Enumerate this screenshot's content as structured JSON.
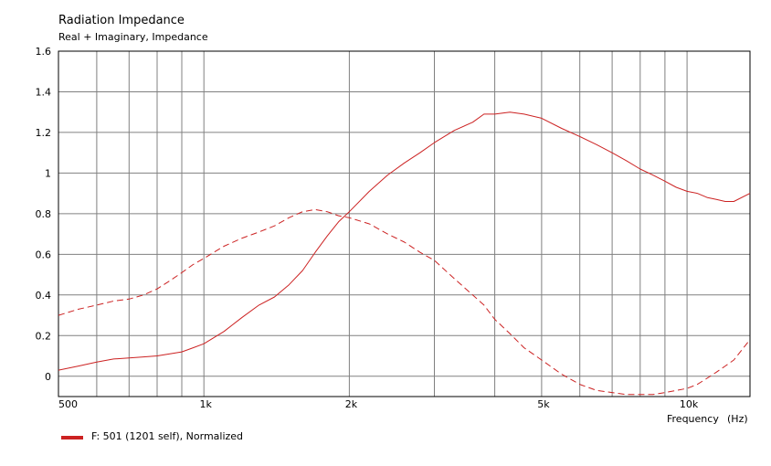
{
  "chart_data": {
    "type": "line",
    "title": "Radiation Impedance",
    "subtitle": "Real + Imaginary, Impedance",
    "xlabel": "Frequency",
    "xunit": "(Hz)",
    "ylabel": "",
    "xscale": "log",
    "xlim": [
      500,
      13500
    ],
    "ylim": [
      -0.1,
      1.6
    ],
    "grid": true,
    "colors": {
      "series": "#cc2222",
      "grid": "#808080",
      "axis": "#000000"
    },
    "x_tick_labels": [
      {
        "value": 500,
        "label": "500"
      },
      {
        "value": 1000,
        "label": "1k"
      },
      {
        "value": 2000,
        "label": "2k"
      },
      {
        "value": 5000,
        "label": "5k"
      },
      {
        "value": 10000,
        "label": "10k"
      }
    ],
    "x_gridlines": [
      600,
      700,
      800,
      900,
      1000,
      2000,
      3000,
      4000,
      5000,
      6000,
      7000,
      8000,
      9000,
      10000
    ],
    "y_tick_labels": [
      {
        "value": 1.6,
        "label": "1.6"
      },
      {
        "value": 1.4,
        "label": "1.4"
      },
      {
        "value": 1.2,
        "label": "1.2"
      },
      {
        "value": 1.0,
        "label": "1"
      },
      {
        "value": 0.8,
        "label": "0.8"
      },
      {
        "value": 0.6,
        "label": "0.6"
      },
      {
        "value": 0.4,
        "label": "0.4"
      },
      {
        "value": 0.2,
        "label": "0.2"
      },
      {
        "value": 0.0,
        "label": "0"
      }
    ],
    "legend": {
      "placement": "bottom-left",
      "label": "F: 501 (1201 self), Normalized"
    },
    "series": [
      {
        "id": "real",
        "style": "solid",
        "x": [
          500,
          550,
          600,
          650,
          700,
          750,
          800,
          850,
          900,
          950,
          1000,
          1100,
          1200,
          1300,
          1400,
          1500,
          1600,
          1700,
          1800,
          1900,
          2000,
          2200,
          2400,
          2600,
          2800,
          3000,
          3300,
          3600,
          3800,
          4000,
          4300,
          4600,
          5000,
          5500,
          6000,
          6500,
          7000,
          7500,
          8000,
          8500,
          9000,
          9500,
          10000,
          10500,
          11000,
          11500,
          12000,
          12500,
          13500
        ],
        "y": [
          0.03,
          0.05,
          0.07,
          0.085,
          0.09,
          0.095,
          0.1,
          0.11,
          0.12,
          0.14,
          0.16,
          0.22,
          0.29,
          0.35,
          0.39,
          0.45,
          0.52,
          0.61,
          0.69,
          0.76,
          0.81,
          0.91,
          0.99,
          1.05,
          1.1,
          1.15,
          1.21,
          1.25,
          1.29,
          1.29,
          1.3,
          1.29,
          1.27,
          1.22,
          1.18,
          1.14,
          1.1,
          1.06,
          1.02,
          0.99,
          0.96,
          0.93,
          0.91,
          0.9,
          0.88,
          0.87,
          0.86,
          0.86,
          0.9
        ]
      },
      {
        "id": "imaginary",
        "style": "dashed",
        "x": [
          500,
          550,
          600,
          650,
          700,
          750,
          800,
          850,
          900,
          950,
          1000,
          1100,
          1200,
          1300,
          1400,
          1500,
          1600,
          1700,
          1800,
          1900,
          2000,
          2200,
          2400,
          2600,
          2800,
          3000,
          3300,
          3600,
          3800,
          4000,
          4300,
          4600,
          5000,
          5500,
          6000,
          6500,
          7000,
          7500,
          8000,
          8500,
          9000,
          9500,
          10000,
          10500,
          11000,
          11500,
          12000,
          12500,
          13500
        ],
        "y": [
          0.3,
          0.33,
          0.35,
          0.37,
          0.38,
          0.4,
          0.43,
          0.47,
          0.51,
          0.55,
          0.58,
          0.64,
          0.68,
          0.71,
          0.74,
          0.78,
          0.81,
          0.82,
          0.81,
          0.79,
          0.78,
          0.75,
          0.7,
          0.66,
          0.61,
          0.57,
          0.48,
          0.4,
          0.35,
          0.28,
          0.21,
          0.14,
          0.08,
          0.01,
          -0.04,
          -0.07,
          -0.08,
          -0.09,
          -0.09,
          -0.09,
          -0.08,
          -0.07,
          -0.06,
          -0.04,
          -0.01,
          0.02,
          0.05,
          0.08,
          0.18
        ]
      }
    ]
  }
}
